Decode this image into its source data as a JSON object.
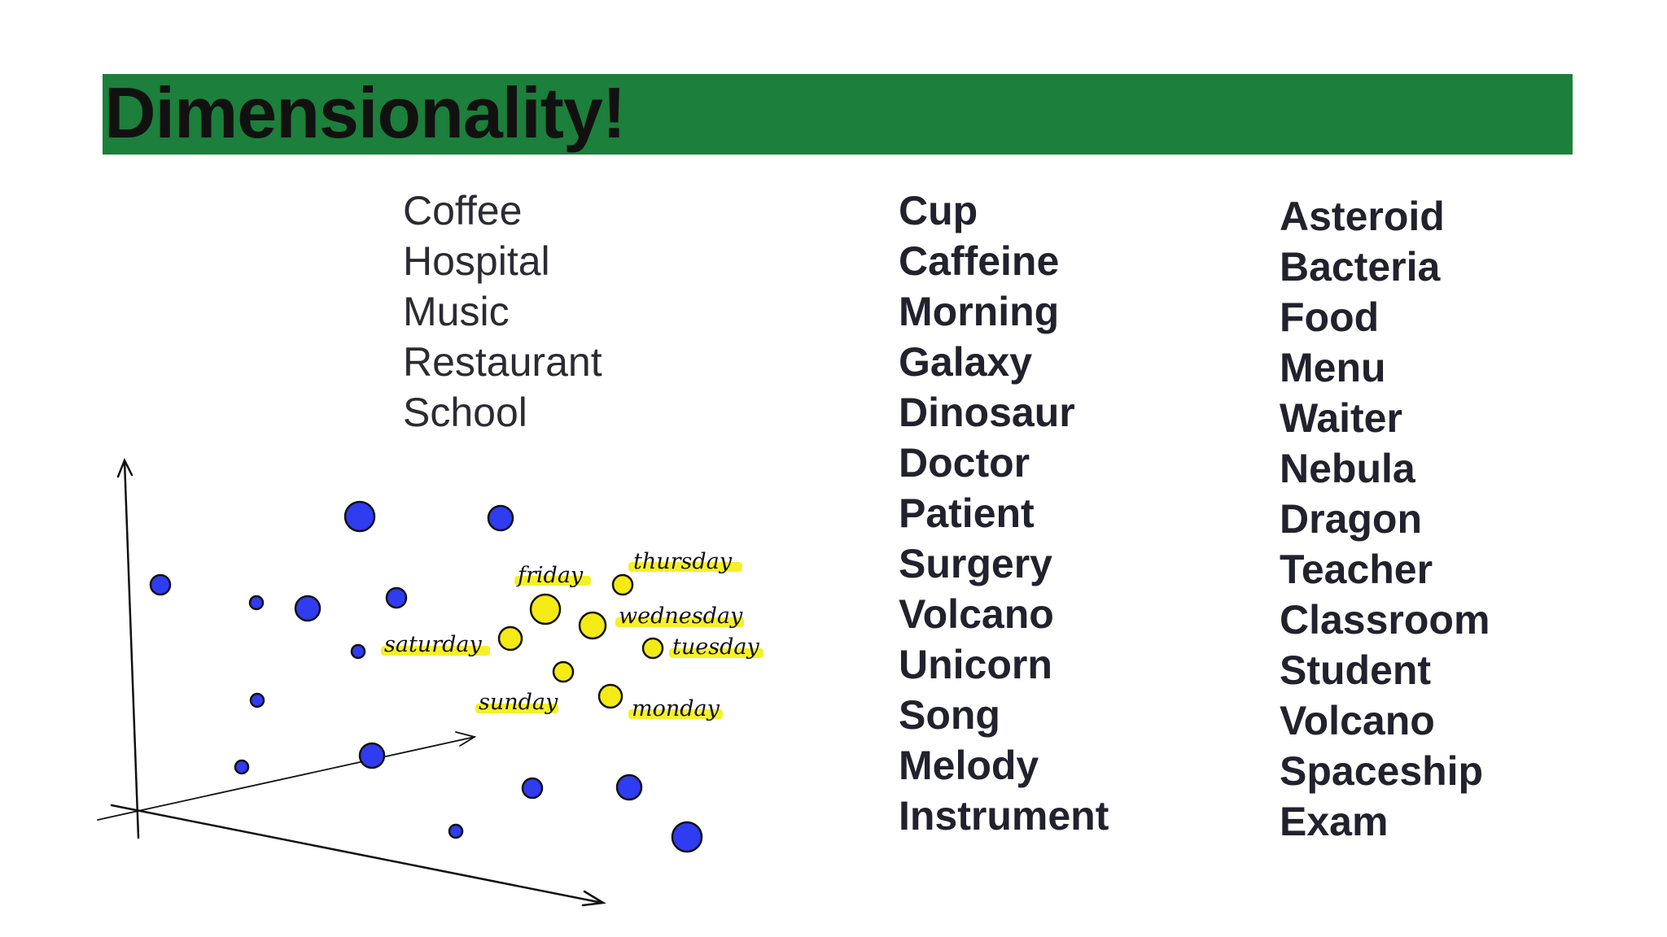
{
  "slide": {
    "title": "Dimensionality!",
    "colors": {
      "title_bar": "#1c7f3b",
      "blue_point": "#2f3cf0",
      "yellow_point": "#f4ea14",
      "highlight": "#f6f02a"
    }
  },
  "columns": {
    "col1": [
      "Coffee",
      "Hospital",
      "Music",
      "Restaurant",
      "School"
    ],
    "col2": [
      "Cup",
      "Caffeine",
      "Morning",
      "Galaxy",
      "Dinosaur",
      "Doctor",
      "Patient",
      "Surgery",
      "Volcano",
      "Unicorn",
      "Song",
      "Melody",
      "Instrument"
    ],
    "col3": [
      "Asteroid",
      "Bacteria",
      "Food",
      "Menu",
      "Waiter",
      "Nebula",
      "Dragon",
      "Teacher",
      "Classroom",
      "Student",
      "Volcano",
      "Spaceship",
      "Exam"
    ]
  },
  "scatter": {
    "labels": {
      "friday": "friday",
      "thursday": "thursday",
      "wednesday": "wednesday",
      "saturday": "saturday",
      "tuesday": "tuesday",
      "sunday": "sunday",
      "monday": "monday"
    }
  }
}
